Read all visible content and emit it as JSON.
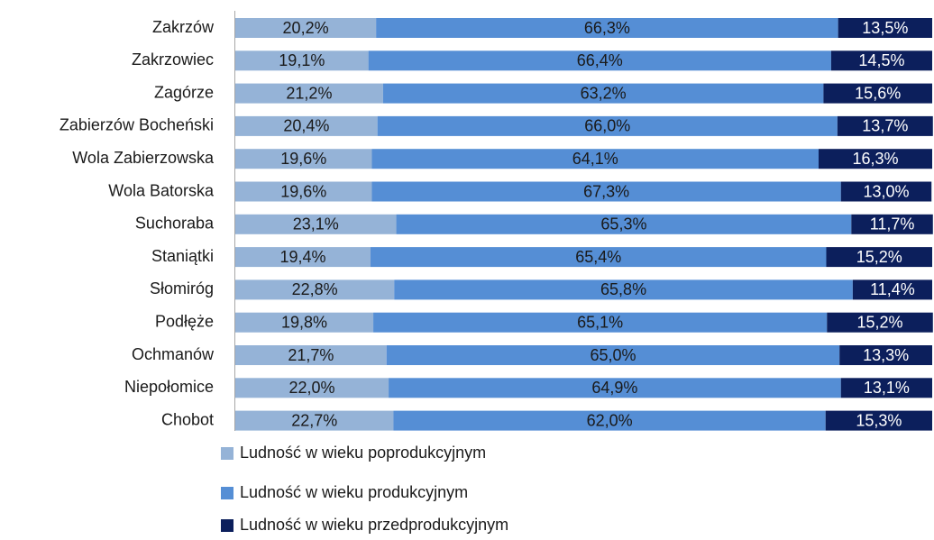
{
  "chart_data": {
    "type": "stacked-bar-horizontal",
    "categories": [
      "Zakrzów",
      "Zakrzowiec",
      "Zagórze",
      "Zabierzów Bocheński",
      "Wola Zabierzowska",
      "Wola Batorska",
      "Suchoraba",
      "Staniątki",
      "Słomiróg",
      "Podłęże",
      "Ochmanów",
      "Niepołomice",
      "Chobot"
    ],
    "xlim": [
      0,
      100
    ],
    "series": [
      {
        "name": "Ludność w wieku poprodukcyjnym",
        "color": "#95b3d7",
        "label_color": "#1a1a1a",
        "values": [
          20.2,
          19.1,
          21.2,
          20.4,
          19.6,
          19.6,
          23.1,
          19.4,
          22.8,
          19.8,
          21.7,
          22.0,
          22.7
        ],
        "value_labels": [
          "20,2%",
          "19,1%",
          "21,2%",
          "20,4%",
          "19,6%",
          "19,6%",
          "23,1%",
          "19,4%",
          "22,8%",
          "19,8%",
          "21,7%",
          "22,0%",
          "22,7%"
        ]
      },
      {
        "name": "Ludność w wieku produkcyjnym",
        "color": "#558ed5",
        "label_color": "#1a1a1a",
        "values": [
          66.3,
          66.4,
          63.2,
          66.0,
          64.1,
          67.3,
          65.3,
          65.4,
          65.8,
          65.1,
          65.0,
          64.9,
          62.0
        ],
        "value_labels": [
          "66,3%",
          "66,4%",
          "63,2%",
          "66,0%",
          "64,1%",
          "67,3%",
          "65,3%",
          "65,4%",
          "65,8%",
          "65,1%",
          "65,0%",
          "64,9%",
          "62,0%"
        ]
      },
      {
        "name": "Ludność w wieku przedprodukcyjnym",
        "color": "#0c1f5c",
        "label_color": "#ffffff",
        "values": [
          13.5,
          14.5,
          15.6,
          13.7,
          16.3,
          13.0,
          11.7,
          15.2,
          11.4,
          15.2,
          13.3,
          13.1,
          15.3
        ],
        "value_labels": [
          "13,5%",
          "14,5%",
          "15,6%",
          "13,7%",
          "16,3%",
          "13,0%",
          "11,7%",
          "15,2%",
          "11,4%",
          "15,2%",
          "13,3%",
          "13,1%",
          "15,3%"
        ]
      }
    ]
  }
}
